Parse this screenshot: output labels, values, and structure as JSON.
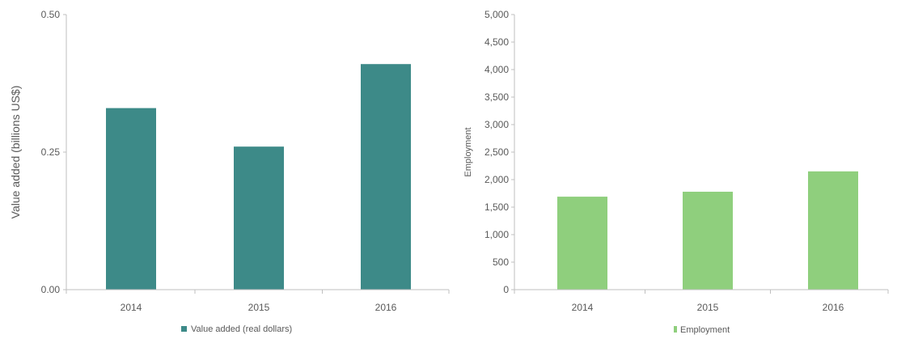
{
  "chart_data": [
    {
      "type": "bar",
      "categories": [
        "2014",
        "2015",
        "2016"
      ],
      "series": [
        {
          "name": "Value added (real dollars)",
          "values": [
            0.33,
            0.26,
            0.41
          ],
          "color": "#3d8a88"
        }
      ],
      "ylabel": "Value added (billions US$)",
      "ylim": [
        0,
        0.5
      ],
      "yticks": [
        "0.00",
        "0.25",
        "0.50"
      ],
      "grid": false,
      "legend": "bottom"
    },
    {
      "type": "bar",
      "categories": [
        "2014",
        "2015",
        "2016"
      ],
      "series": [
        {
          "name": "Employment",
          "values": [
            1690,
            1780,
            2150
          ],
          "color": "#8fcf7d"
        }
      ],
      "ylabel": "Employment",
      "ylim": [
        0,
        5000
      ],
      "yticks": [
        "0",
        "500",
        "1,000",
        "1,500",
        "2,000",
        "2,500",
        "3,000",
        "3,500",
        "4,000",
        "4,500",
        "5,000"
      ],
      "grid": false,
      "legend": "bottom"
    }
  ]
}
